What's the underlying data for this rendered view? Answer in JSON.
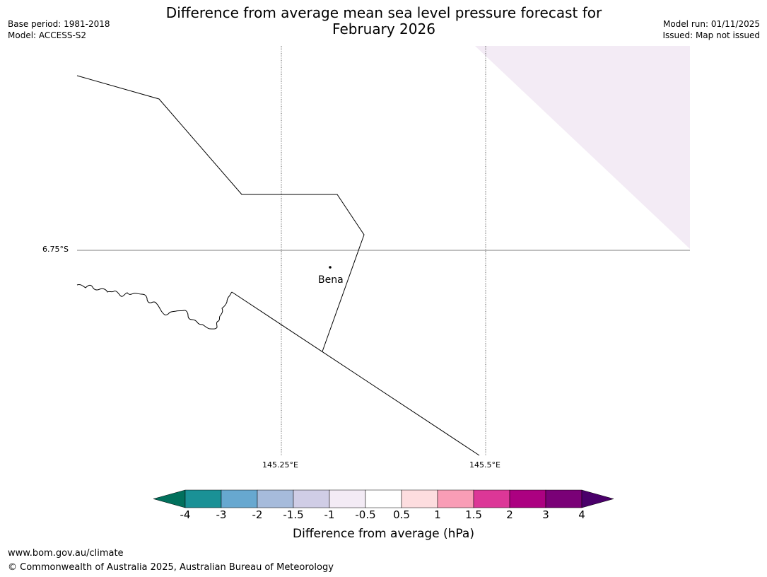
{
  "title_line1": "Difference from average mean sea level pressure forecast for",
  "title_line2": "February 2026",
  "meta_left": {
    "base_period": "Base period: 1981-2018",
    "model": "Model: ACCESS-S2"
  },
  "meta_right": {
    "model_run": "Model run: 01/11/2025",
    "issued": "Issued: Map not issued"
  },
  "map": {
    "lat_label": "6.75°S",
    "lon_labels": [
      "145.25°E",
      "145.5°E"
    ],
    "place": {
      "name": "Bena"
    },
    "shaded_region_color": "#f3ebf5",
    "shaded_region_value_range": "-1 to -0.5"
  },
  "colorbar": {
    "title": "Difference from average (hPa)",
    "ticks": [
      "-4",
      "-3",
      "-2",
      "-1.5",
      "-1",
      "-0.5",
      "0.5",
      "1",
      "1.5",
      "2",
      "3",
      "4"
    ],
    "colors": [
      "#1a9196",
      "#67a8d0",
      "#a6bbdb",
      "#d0cde6",
      "#f3ebf5",
      "#ffffff",
      "#fddddf",
      "#f99db6",
      "#dc3797",
      "#ac0181",
      "#7a0177"
    ],
    "extend_low_color": "#01705c",
    "extend_high_color": "#4a006a"
  },
  "footer": {
    "url": "www.bom.gov.au/climate",
    "copyright": "© Commonwealth of Australia 2025, Australian Bureau of Meteorology"
  }
}
